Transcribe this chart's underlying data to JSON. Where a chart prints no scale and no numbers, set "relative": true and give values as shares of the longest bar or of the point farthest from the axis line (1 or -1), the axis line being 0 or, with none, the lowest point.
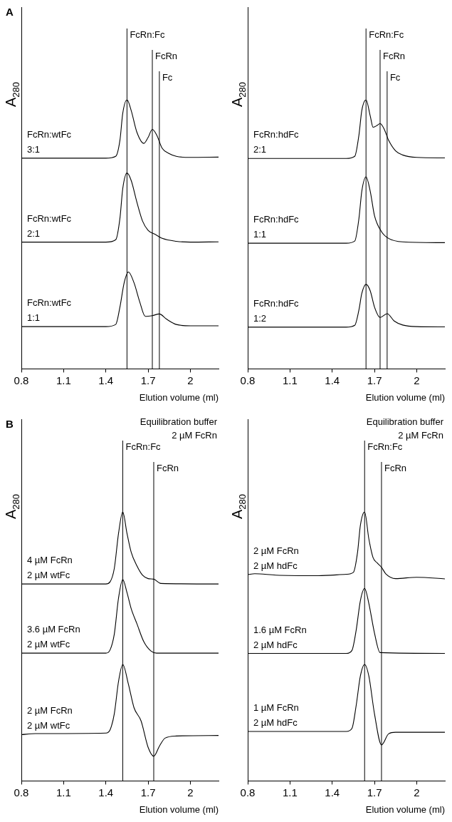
{
  "chart_data": [
    {
      "type": "line",
      "title": "A",
      "ylabel": "A$_{280}$",
      "xlabel": "Elution volume (ml)",
      "relative": true,
      "xlim": [
        0.8,
        2.2
      ],
      "xticks": [
        0.8,
        1.1,
        1.4,
        1.7,
        2
      ],
      "marker": "none",
      "line_style": "solid",
      "ref_lines": [
        {
          "axis": "x",
          "value": 1.55,
          "label": "FcRn:Fc"
        },
        {
          "axis": "x",
          "value": 1.73,
          "label": "FcRn"
        },
        {
          "axis": "x",
          "value": 1.78,
          "label": "Fc"
        }
      ],
      "series": [
        {
          "name": "FcRn:wtFc\n3:1",
          "color": "#000000",
          "x": [
            0.8,
            1.4,
            1.47,
            1.5,
            1.52,
            1.55,
            1.58,
            1.62,
            1.67,
            1.7,
            1.73,
            1.76,
            1.8,
            1.85,
            1.9,
            2.0,
            2.2
          ],
          "values": [
            0.783,
            0.783,
            0.79,
            0.85,
            0.95,
            1.0,
            0.96,
            0.88,
            0.838,
            0.86,
            0.89,
            0.87,
            0.82,
            0.8,
            0.79,
            0.786,
            0.787
          ]
        },
        {
          "name": "FcRn:wtFc\n2:1",
          "color": "#000000",
          "x": [
            0.8,
            1.4,
            1.47,
            1.5,
            1.52,
            1.55,
            1.58,
            1.62,
            1.66,
            1.7,
            1.75,
            1.8,
            1.9,
            2.0,
            2.2
          ],
          "values": [
            0.471,
            0.471,
            0.48,
            0.56,
            0.67,
            0.728,
            0.7,
            0.62,
            0.55,
            0.515,
            0.5,
            0.485,
            0.474,
            0.471,
            0.472
          ]
        },
        {
          "name": "FcRn:wtFc\n1:1",
          "color": "#000000",
          "x": [
            0.8,
            1.4,
            1.47,
            1.5,
            1.53,
            1.56,
            1.6,
            1.64,
            1.68,
            1.73,
            1.78,
            1.83,
            1.9,
            2.0,
            2.2
          ],
          "values": [
            0.157,
            0.157,
            0.165,
            0.23,
            0.32,
            0.36,
            0.32,
            0.25,
            0.195,
            0.198,
            0.204,
            0.185,
            0.165,
            0.16,
            0.16
          ]
        }
      ]
    },
    {
      "type": "line",
      "ylabel": "A$_{280}$",
      "xlabel": "Elution volume (ml)",
      "relative": true,
      "xlim": [
        0.8,
        2.2
      ],
      "xticks": [
        0.8,
        1.1,
        1.4,
        1.7,
        2
      ],
      "marker": "none",
      "line_style": "solid",
      "ref_lines": [
        {
          "axis": "x",
          "value": 1.64,
          "label": "FcRn:Fc"
        },
        {
          "axis": "x",
          "value": 1.74,
          "label": "FcRn"
        },
        {
          "axis": "x",
          "value": 1.79,
          "label": "Fc"
        }
      ],
      "series": [
        {
          "name": "FcRn:hdFc\n2:1",
          "color": "#000000",
          "x": [
            0.8,
            1.5,
            1.56,
            1.59,
            1.61,
            1.64,
            1.67,
            1.69,
            1.72,
            1.74,
            1.77,
            1.8,
            1.85,
            1.9,
            2.0,
            2.2
          ],
          "values": [
            0.782,
            0.782,
            0.79,
            0.87,
            0.96,
            1.0,
            0.94,
            0.898,
            0.905,
            0.912,
            0.89,
            0.85,
            0.81,
            0.795,
            0.786,
            0.784
          ]
        },
        {
          "name": "FcRn:hdFc\n1:1",
          "color": "#000000",
          "x": [
            0.8,
            1.5,
            1.56,
            1.59,
            1.61,
            1.64,
            1.67,
            1.7,
            1.75,
            1.8,
            1.9,
            2.2
          ],
          "values": [
            0.467,
            0.467,
            0.475,
            0.56,
            0.66,
            0.714,
            0.66,
            0.57,
            0.51,
            0.485,
            0.472,
            0.469
          ]
        },
        {
          "name": "FcRn:hdFc\n1:2",
          "color": "#000000",
          "x": [
            0.8,
            1.5,
            1.56,
            1.59,
            1.61,
            1.64,
            1.67,
            1.7,
            1.74,
            1.79,
            1.84,
            1.9,
            2.0,
            2.2
          ],
          "values": [
            0.155,
            0.155,
            0.162,
            0.22,
            0.28,
            0.314,
            0.29,
            0.23,
            0.191,
            0.205,
            0.178,
            0.163,
            0.157,
            0.156
          ]
        }
      ]
    },
    {
      "type": "line",
      "title": "B",
      "ylabel": "A$_{280}$",
      "xlabel": "Elution volume (ml)",
      "relative": true,
      "xlim": [
        0.8,
        2.2
      ],
      "xticks": [
        0.8,
        1.1,
        1.4,
        1.7,
        2
      ],
      "marker": "none",
      "line_style": "solid",
      "annotations": [
        "Equilibration buffer\n2 µM FcRn"
      ],
      "ref_lines": [
        {
          "axis": "x",
          "value": 1.52,
          "label": "FcRn:Fc"
        },
        {
          "axis": "x",
          "value": 1.74,
          "label": "FcRn"
        }
      ],
      "series": [
        {
          "name": "4 µM FcRn\n2 µM wtFc",
          "color": "#000000",
          "x": [
            0.8,
            1.4,
            1.43,
            1.46,
            1.49,
            1.52,
            1.55,
            1.58,
            1.62,
            1.66,
            1.7,
            1.74,
            1.79,
            2.2
          ],
          "values": [
            0.732,
            0.732,
            0.74,
            0.79,
            0.92,
            1.0,
            0.92,
            0.85,
            0.8,
            0.765,
            0.752,
            0.75,
            0.734,
            0.732
          ]
        },
        {
          "name": "3.6 µM FcRn\n2 µM wtFc",
          "color": "#000000",
          "x": [
            0.8,
            1.4,
            1.43,
            1.46,
            1.49,
            1.52,
            1.55,
            1.58,
            1.62,
            1.67,
            1.72,
            1.76,
            2.2
          ],
          "values": [
            0.475,
            0.475,
            0.487,
            0.546,
            0.68,
            0.749,
            0.7,
            0.64,
            0.585,
            0.517,
            0.483,
            0.475,
            0.475
          ]
        },
        {
          "name": "2 µM FcRn\n2 µM wtFc",
          "color": "#000000",
          "x": [
            0.8,
            0.9,
            1.4,
            1.43,
            1.46,
            1.49,
            1.52,
            1.56,
            1.6,
            1.65,
            1.7,
            1.74,
            1.78,
            1.82,
            1.9,
            2.2
          ],
          "values": [
            0.172,
            0.176,
            0.178,
            0.19,
            0.25,
            0.37,
            0.433,
            0.36,
            0.272,
            0.223,
            0.125,
            0.092,
            0.129,
            0.159,
            0.167,
            0.169
          ]
        }
      ]
    },
    {
      "type": "line",
      "ylabel": "A$_{280}$",
      "xlabel": "Elution volume (ml)",
      "relative": true,
      "xlim": [
        0.8,
        2.2
      ],
      "xticks": [
        0.8,
        1.1,
        1.4,
        1.7,
        2
      ],
      "marker": "none",
      "line_style": "solid",
      "annotations": [
        "Equilibration buffer\n2 µM FcRn"
      ],
      "ref_lines": [
        {
          "axis": "x",
          "value": 1.63,
          "label": "FcRn:Fc"
        },
        {
          "axis": "x",
          "value": 1.75,
          "label": "FcRn"
        }
      ],
      "series": [
        {
          "name": "2 µM FcRn\n2 µM hdFc",
          "color": "#000000",
          "x": [
            0.8,
            0.85,
            1.0,
            1.3,
            1.5,
            1.55,
            1.58,
            1.6,
            1.63,
            1.66,
            1.69,
            1.72,
            1.75,
            1.78,
            1.85,
            2.0,
            2.2
          ],
          "values": [
            0.767,
            0.77,
            0.765,
            0.763,
            0.768,
            0.775,
            0.85,
            0.95,
            1.0,
            0.9,
            0.83,
            0.81,
            0.794,
            0.77,
            0.752,
            0.757,
            0.751
          ]
        },
        {
          "name": "1.6 µM FcRn\n2 µM hdFc",
          "color": "#000000",
          "x": [
            0.8,
            1.5,
            1.54,
            1.57,
            1.6,
            1.63,
            1.66,
            1.7,
            1.74,
            2.2
          ],
          "values": [
            0.474,
            0.474,
            0.485,
            0.56,
            0.67,
            0.716,
            0.66,
            0.55,
            0.477,
            0.474
          ]
        },
        {
          "name": "1 µM FcRn\n2 µM hdFc",
          "color": "#000000",
          "x": [
            0.8,
            1.5,
            1.54,
            1.57,
            1.6,
            1.63,
            1.66,
            1.7,
            1.75,
            1.8,
            1.85,
            2.2
          ],
          "values": [
            0.184,
            0.184,
            0.195,
            0.28,
            0.39,
            0.433,
            0.39,
            0.25,
            0.134,
            0.175,
            0.181,
            0.181
          ]
        }
      ]
    }
  ]
}
